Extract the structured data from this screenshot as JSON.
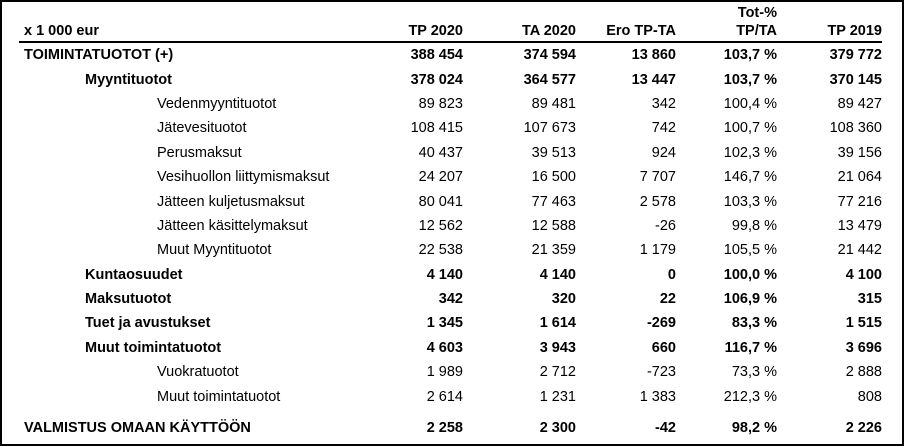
{
  "page": {
    "background_color": "#ffffff",
    "border_color": "#000000",
    "text_color": "#000000"
  },
  "table": {
    "unit_label": "x 1 000 eur",
    "columns": [
      {
        "top": "",
        "label": "TP 2020"
      },
      {
        "top": "",
        "label": "TA 2020"
      },
      {
        "top": "",
        "label": "Ero TP-TA"
      },
      {
        "top": "Tot-%",
        "label": "TP/TA"
      },
      {
        "top": "",
        "label": "TP 2019"
      }
    ],
    "rows": [
      {
        "label": "TOIMINTATUOTOT (+)",
        "indent": 0,
        "bold": true,
        "values": [
          "388 454",
          "374 594",
          "13 860",
          "103,7 %",
          "379 772"
        ]
      },
      {
        "label": "Myyntituotot",
        "indent": 1,
        "bold": true,
        "values": [
          "378 024",
          "364 577",
          "13 447",
          "103,7 %",
          "370 145"
        ]
      },
      {
        "label": "Vedenmyyntituotot",
        "indent": 2,
        "bold": false,
        "values": [
          "89 823",
          "89 481",
          "342",
          "100,4 %",
          "89 427"
        ]
      },
      {
        "label": "Jätevesituotot",
        "indent": 2,
        "bold": false,
        "values": [
          "108 415",
          "107 673",
          "742",
          "100,7 %",
          "108 360"
        ]
      },
      {
        "label": "Perusmaksut",
        "indent": 2,
        "bold": false,
        "values": [
          "40 437",
          "39 513",
          "924",
          "102,3 %",
          "39 156"
        ]
      },
      {
        "label": "Vesihuollon liittymismaksut",
        "indent": 2,
        "bold": false,
        "values": [
          "24 207",
          "16 500",
          "7 707",
          "146,7 %",
          "21 064"
        ]
      },
      {
        "label": "Jätteen kuljetusmaksut",
        "indent": 2,
        "bold": false,
        "values": [
          "80 041",
          "77 463",
          "2 578",
          "103,3 %",
          "77 216"
        ]
      },
      {
        "label": "Jätteen käsittelymaksut",
        "indent": 2,
        "bold": false,
        "values": [
          "12 562",
          "12 588",
          "-26",
          "99,8 %",
          "13 479"
        ]
      },
      {
        "label": "Muut Myyntituotot",
        "indent": 2,
        "bold": false,
        "values": [
          "22 538",
          "21 359",
          "1 179",
          "105,5 %",
          "21 442"
        ]
      },
      {
        "label": "Kuntaosuudet",
        "indent": 1,
        "bold": true,
        "values": [
          "4 140",
          "4 140",
          "0",
          "100,0 %",
          "4 100"
        ]
      },
      {
        "label": "Maksutuotot",
        "indent": 1,
        "bold": true,
        "values": [
          "342",
          "320",
          "22",
          "106,9 %",
          "315"
        ]
      },
      {
        "label": "Tuet ja avustukset",
        "indent": 1,
        "bold": true,
        "values": [
          "1 345",
          "1 614",
          "-269",
          "83,3 %",
          "1 515"
        ]
      },
      {
        "label": "Muut toimintatuotot",
        "indent": 1,
        "bold": true,
        "values": [
          "4 603",
          "3 943",
          "660",
          "116,7 %",
          "3 696"
        ]
      },
      {
        "label": "Vuokratuotot",
        "indent": 2,
        "bold": false,
        "values": [
          "1 989",
          "2 712",
          "-723",
          "73,3 %",
          "2 888"
        ]
      },
      {
        "label": "Muut toimintatuotot",
        "indent": 2,
        "bold": false,
        "values": [
          "2 614",
          "1 231",
          "1 383",
          "212,3 %",
          "808"
        ]
      },
      {
        "label": "VALMISTUS OMAAN KÄYTTÖÖN",
        "indent": 0,
        "bold": true,
        "values": [
          "2 258",
          "2 300",
          "-42",
          "98,2 %",
          "2 226"
        ]
      }
    ]
  }
}
